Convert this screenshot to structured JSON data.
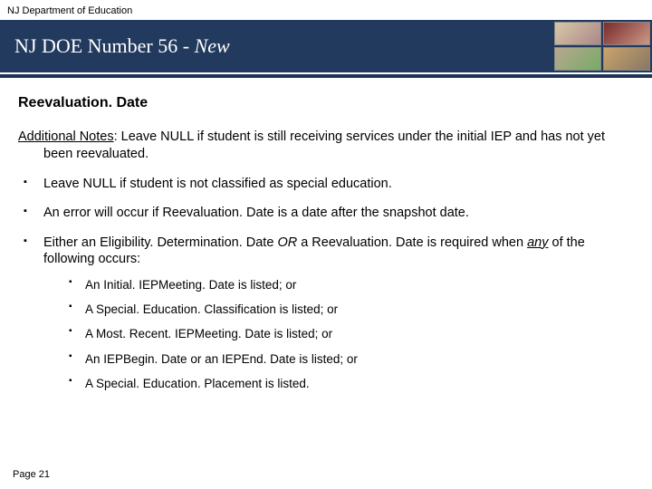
{
  "header": {
    "dept_label": "NJ Department of Education",
    "title_prefix": "NJ DOE Number 56 - ",
    "title_suffix": "New"
  },
  "content": {
    "section_heading": "Reevaluation. Date",
    "notes_lead": "Additional Notes",
    "notes_text": ": Leave NULL if student is still receiving services under the initial IEP and has not yet been reevaluated.",
    "bullets": [
      {
        "text": "Leave NULL if student is not classified as special education."
      },
      {
        "text": "An error will occur if Reevaluation. Date is a date after the snapshot date."
      },
      {
        "pre": "Either an Eligibility. Determination. Date ",
        "ital1": "OR",
        "mid": " a Reevaluation. Date is required when ",
        "under": "any",
        "post": " of the following occurs:",
        "sub": [
          "An Initial. IEPMeeting. Date is listed; or",
          "A Special. Education. Classification is listed; or",
          "A Most. Recent. IEPMeeting. Date is listed; or",
          "An IEPBegin. Date or an IEPEnd. Date is listed; or",
          "A Special. Education. Placement is listed."
        ]
      }
    ]
  },
  "footer": {
    "page_label": "Page 21"
  },
  "colors": {
    "band": "#223a5e",
    "rule": "#1f3557",
    "bg": "#ffffff"
  }
}
